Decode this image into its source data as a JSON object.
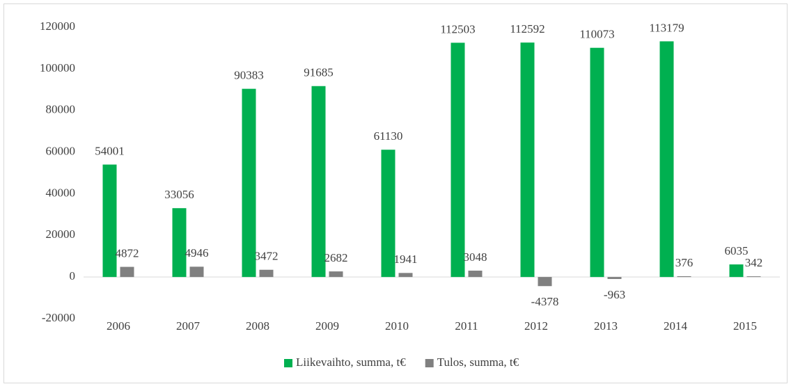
{
  "chart_data": {
    "type": "bar",
    "categories": [
      "2006",
      "2007",
      "2008",
      "2009",
      "2010",
      "2011",
      "2012",
      "2013",
      "2014",
      "2015"
    ],
    "series": [
      {
        "name": "Liikevaihto, summa, t€",
        "color": "#00b050",
        "values": [
          54001,
          33056,
          90383,
          91685,
          61130,
          112503,
          112592,
          110073,
          113179,
          6035
        ]
      },
      {
        "name": "Tulos, summa, t€",
        "color": "#808080",
        "values": [
          4872,
          4946,
          3472,
          2682,
          1941,
          3048,
          -4378,
          -963,
          376,
          342
        ]
      }
    ],
    "ylim": [
      -20000,
      120000
    ],
    "yticks": [
      -20000,
      0,
      20000,
      40000,
      60000,
      80000,
      100000,
      120000
    ],
    "grid": false,
    "legend": "bottom"
  }
}
